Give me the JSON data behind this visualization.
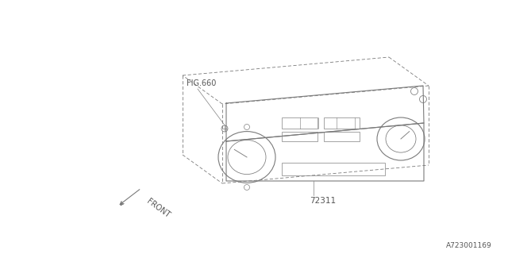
{
  "bg_color": "#ffffff",
  "line_color": "#7a7a7a",
  "text_color": "#555555",
  "fig_width": 6.4,
  "fig_height": 3.2,
  "dpi": 100,
  "label_fig660": "FIG.660",
  "label_72311": "72311",
  "label_front": "FRONT",
  "label_code": "A723001169"
}
